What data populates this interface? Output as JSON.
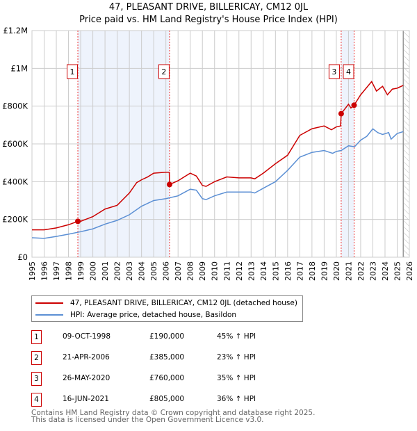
{
  "chart_data": {
    "type": "line",
    "title": "47, PLEASANT DRIVE, BILLERICAY, CM12 0JL",
    "subtitle": "Price paid vs. HM Land Registry's House Price Index (HPI)",
    "xlim": [
      1995,
      2026
    ],
    "ylim": [
      0,
      1200000
    ],
    "x_ticks": [
      "1995",
      "1996",
      "1997",
      "1998",
      "1999",
      "2000",
      "2001",
      "2002",
      "2003",
      "2004",
      "2005",
      "2006",
      "2007",
      "2008",
      "2009",
      "2010",
      "2011",
      "2012",
      "2013",
      "2014",
      "2015",
      "2016",
      "2017",
      "2018",
      "2019",
      "2020",
      "2021",
      "2022",
      "2023",
      "2024",
      "2025",
      "2026"
    ],
    "y_ticks": [
      {
        "v": 0,
        "label": "£0"
      },
      {
        "v": 200000,
        "label": "£200K"
      },
      {
        "v": 400000,
        "label": "£400K"
      },
      {
        "v": 600000,
        "label": "£600K"
      },
      {
        "v": 800000,
        "label": "£800K"
      },
      {
        "v": 1000000,
        "label": "£1M"
      },
      {
        "v": 1200000,
        "label": "£1.2M"
      }
    ],
    "grid": true,
    "shaded_periods": [
      [
        1998.77,
        2006.3
      ],
      [
        2020.4,
        2021.46
      ]
    ],
    "hatched_from": 2025.5,
    "series": [
      {
        "name": "47, PLEASANT DRIVE, BILLERICAY, CM12 0JL (detached house)",
        "color": "#cc0000",
        "x": [
          1995,
          1996,
          1997,
          1998,
          1998.77,
          1999,
          2000,
          2001,
          2002,
          2003,
          2003.6,
          2004,
          2004.5,
          2005,
          2006,
          2006.28,
          2006.3,
          2007,
          2008,
          2008.5,
          2009,
          2009.3,
          2010,
          2011,
          2012,
          2013,
          2013.3,
          2014,
          2015,
          2016,
          2017,
          2018,
          2019,
          2019.6,
          2020,
          2020.35,
          2020.4,
          2021,
          2021.2,
          2021.46,
          2022,
          2022.9,
          2023.3,
          2023.8,
          2024.2,
          2024.6,
          2025,
          2025.5
        ],
        "y": [
          145000,
          145000,
          155000,
          172000,
          190000,
          190000,
          215000,
          255000,
          275000,
          340000,
          395000,
          410000,
          425000,
          445000,
          450000,
          450000,
          385000,
          405000,
          445000,
          430000,
          380000,
          375000,
          400000,
          425000,
          420000,
          420000,
          415000,
          445000,
          495000,
          540000,
          645000,
          680000,
          695000,
          675000,
          690000,
          695000,
          760000,
          810000,
          790000,
          805000,
          860000,
          930000,
          880000,
          905000,
          860000,
          890000,
          895000,
          910000
        ]
      },
      {
        "name": "HPI: Average price, detached house, Basildon",
        "color": "#5b8fd4",
        "x": [
          1995,
          1996,
          1997,
          1998,
          1999,
          2000,
          2001,
          2002,
          2003,
          2004,
          2005,
          2006,
          2007,
          2008,
          2008.5,
          2009,
          2009.3,
          2010,
          2011,
          2012,
          2013,
          2013.3,
          2014,
          2015,
          2016,
          2017,
          2018,
          2019,
          2019.7,
          2020,
          2020.4,
          2021,
          2021.5,
          2022,
          2022.5,
          2023,
          2023.4,
          2023.8,
          2024.3,
          2024.5,
          2025,
          2025.5
        ],
        "y": [
          103000,
          100000,
          110000,
          122000,
          135000,
          150000,
          175000,
          195000,
          225000,
          270000,
          300000,
          310000,
          325000,
          360000,
          355000,
          310000,
          305000,
          325000,
          345000,
          345000,
          345000,
          340000,
          365000,
          400000,
          460000,
          530000,
          555000,
          565000,
          550000,
          560000,
          565000,
          590000,
          585000,
          620000,
          640000,
          680000,
          660000,
          650000,
          660000,
          625000,
          655000,
          665000
        ]
      }
    ],
    "sales": [
      {
        "n": "1",
        "x": 1998.77,
        "price": 190000,
        "date": "09-OCT-1998",
        "price_label": "£190,000",
        "hpi": "45% ↑ HPI"
      },
      {
        "n": "2",
        "x": 2006.3,
        "price": 385000,
        "date": "21-APR-2006",
        "price_label": "£385,000",
        "hpi": "23% ↑ HPI"
      },
      {
        "n": "3",
        "x": 2020.4,
        "price": 760000,
        "date": "26-MAY-2020",
        "price_label": "£760,000",
        "hpi": "35% ↑ HPI"
      },
      {
        "n": "4",
        "x": 2021.46,
        "price": 805000,
        "date": "16-JUN-2021",
        "price_label": "£805,000",
        "hpi": "36% ↑ HPI"
      }
    ]
  },
  "footer": {
    "line1": "Contains HM Land Registry data © Crown copyright and database right 2025.",
    "line2": "This data is licensed under the Open Government Licence v3.0."
  }
}
